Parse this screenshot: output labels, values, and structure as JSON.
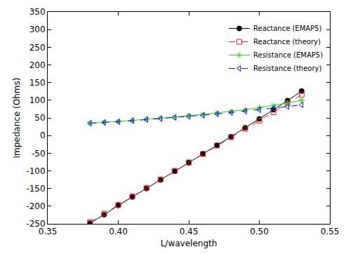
{
  "chart_data": {
    "type": "line",
    "x_label": "L/wavelength",
    "y_label": "Impedance (Ohms)",
    "x": [
      0.38,
      0.39,
      0.4,
      0.41,
      0.42,
      0.43,
      0.44,
      0.45,
      0.46,
      0.47,
      0.48,
      0.49,
      0.5,
      0.51,
      0.52,
      0.53
    ],
    "series": [
      {
        "name": "Reactance (EMAP5)",
        "color": "#000000",
        "marker": "circle",
        "line_style": "solid",
        "values": [
          -248,
          -224,
          -198,
          -174,
          -150,
          -126,
          -101,
          -77,
          -52,
          -28,
          -3,
          22,
          47,
          73,
          99,
          126
        ]
      },
      {
        "name": "Reactance (theory)",
        "color": "#e02020",
        "marker": "square-open",
        "line_style": "dash",
        "values": [
          -245,
          -221,
          -196,
          -172,
          -148,
          -124,
          -100,
          -76,
          -52,
          -28,
          -5,
          19,
          42,
          66,
          91,
          116
        ]
      },
      {
        "name": "Resistance (EMAP5)",
        "color": "#33cc33",
        "marker": "asterisk-open",
        "line_style": "solid",
        "values": [
          35,
          37,
          40,
          43,
          46,
          49,
          52,
          56,
          60,
          64,
          68,
          73,
          79,
          85,
          92,
          100
        ]
      },
      {
        "name": "Resistance (theory)",
        "color": "#1010c8",
        "marker": "triangle-left-open",
        "line_style": "dash",
        "values": [
          35,
          37,
          39,
          42,
          45,
          48,
          51,
          54,
          57,
          61,
          65,
          69,
          73,
          77,
          82,
          87
        ]
      }
    ],
    "xlim": [
      0.35,
      0.55
    ],
    "xticks": [
      0.35,
      {
        "value": 0.4,
        "label": "0.40"
      },
      0.45,
      {
        "value": 0.5,
        "label": "0.50"
      },
      0.55
    ],
    "ylim": [
      -250,
      350
    ],
    "yticks": [
      -250,
      -200,
      -150,
      -100,
      -50,
      0,
      50,
      100,
      150,
      200,
      250,
      300,
      350
    ],
    "grid": false,
    "legend": "upper right"
  }
}
